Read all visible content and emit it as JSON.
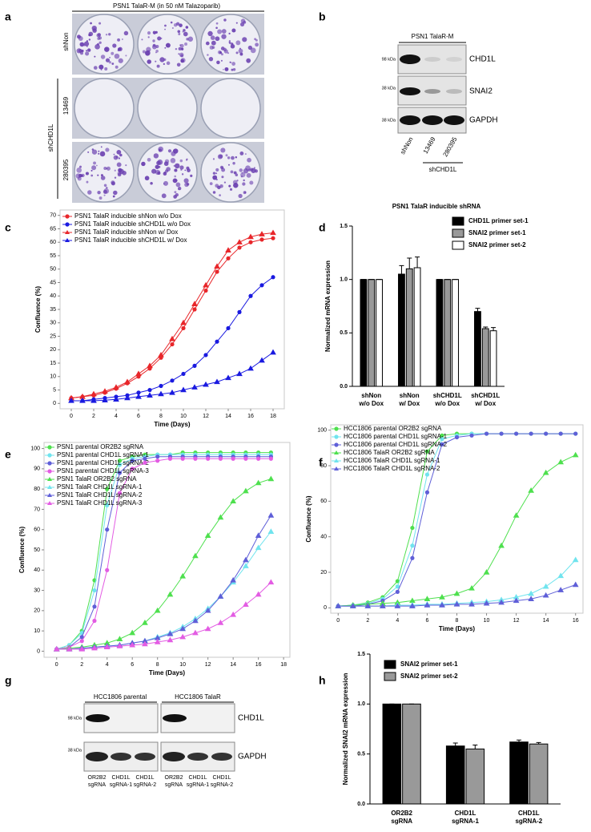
{
  "panel_labels": [
    "a",
    "b",
    "c",
    "d",
    "e",
    "f",
    "g",
    "h"
  ],
  "panel_a": {
    "title": "PSN1 TalaR-M (in 50 nM Talazoparib)",
    "rows": [
      "shNon",
      "13469",
      "280395"
    ],
    "group": "shCHD1L"
  },
  "panel_b": {
    "title": "PSN1 TalaR-M",
    "markers": [
      "98 kDa",
      "38 kDa",
      "38 kDa"
    ],
    "proteins": [
      "CHD1L",
      "SNAI2",
      "GAPDH"
    ],
    "lanes": [
      "shNon",
      "13469",
      "280395"
    ],
    "group": "shCHD1L"
  },
  "panel_g": {
    "groups": [
      "HCC1806 parental",
      "HCC1806 TalaR"
    ],
    "markers": [
      "98 kDa",
      "38 kDa"
    ],
    "proteins": [
      "CHD1L",
      "GAPDH"
    ],
    "lanes": [
      [
        "OR2B2",
        "sgRNA"
      ],
      [
        "CHD1L",
        "sgRNA-1"
      ],
      [
        "CHD1L",
        "sgRNA-2"
      ],
      [
        "OR2B2",
        "sgRNA"
      ],
      [
        "CHD1L",
        "sgRNA-1"
      ],
      [
        "CHD1L",
        "sgRNA-2"
      ]
    ]
  },
  "chart_data": [
    {
      "type": "line",
      "x_label": "Time (Days)",
      "y_label": "Confluence (%)",
      "x": [
        0,
        1,
        2,
        3,
        4,
        5,
        6,
        7,
        8,
        9,
        10,
        11,
        12,
        13,
        14,
        15,
        16,
        17,
        18
      ],
      "xlim": [
        -1,
        19
      ],
      "xticks": [
        0,
        2,
        4,
        6,
        8,
        10,
        12,
        14,
        16,
        18
      ],
      "ylim": [
        -2,
        72
      ],
      "yticks": [
        0,
        5,
        10,
        15,
        20,
        25,
        30,
        35,
        40,
        45,
        50,
        55,
        60,
        65,
        70
      ],
      "series": [
        {
          "name": "PSN1 TalaR inducible shNon w/o Dox",
          "color": "#e8262a",
          "marker": "circle",
          "values": [
            2,
            2.5,
            3,
            4,
            5.5,
            7.5,
            10,
            13,
            17,
            22,
            28,
            35,
            42,
            49,
            54,
            58,
            60,
            61,
            61.5
          ]
        },
        {
          "name": "PSN1 TalaR inducible shCHD1L w/o Dox",
          "color": "#1a1ae0",
          "marker": "circle",
          "values": [
            1,
            1,
            1.5,
            2,
            2.5,
            3,
            4,
            5,
            6.5,
            8.5,
            11,
            14,
            18,
            23,
            28,
            34,
            40,
            44,
            47
          ]
        },
        {
          "name": "PSN1 TalaR inducible shNon w/ Dox",
          "color": "#e8262a",
          "marker": "triangle",
          "values": [
            2,
            2.5,
            3.5,
            4.5,
            6,
            8,
            11,
            14,
            18,
            24,
            30,
            37,
            44,
            51,
            57,
            60,
            62,
            63,
            63.5
          ]
        },
        {
          "name": "PSN1 TalaR inducible shCHD1L w/ Dox",
          "color": "#1a1ae0",
          "marker": "triangle",
          "values": [
            1,
            1,
            1,
            1.2,
            1.5,
            2,
            2.5,
            3,
            3.5,
            4,
            5,
            6,
            7,
            8,
            9.5,
            11,
            13,
            16,
            19
          ]
        }
      ]
    },
    {
      "type": "bar",
      "title": "PSN1 TalaR inducible shRNA",
      "y_label": "Normalized mRNA expression",
      "categories": [
        [
          "shNon",
          "w/o Dox"
        ],
        [
          "shNon",
          "w/ Dox"
        ],
        [
          "shCHD1L",
          "w/o Dox"
        ],
        [
          "shCHD1L",
          "w/ Dox"
        ]
      ],
      "ylim": [
        0,
        1.5
      ],
      "yticks": [
        {
          "value": 0,
          "label": "0.0"
        },
        0.5,
        {
          "value": 1,
          "label": "1.0"
        },
        1.5
      ],
      "series": [
        {
          "name": "CHD1L primer set-1",
          "color": "#000000",
          "values": [
            1,
            1.05,
            1,
            0.7
          ],
          "errors": [
            0,
            0.08,
            0,
            0.03
          ]
        },
        {
          "name": "SNAI2 primer set-1",
          "color": "#999999",
          "values": [
            1,
            1.1,
            1,
            0.54
          ],
          "errors": [
            0,
            0.1,
            0,
            0.015
          ]
        },
        {
          "name": "SNAI2 primer set-2",
          "color": "#ffffff",
          "values": [
            1,
            1.11,
            1,
            0.52
          ],
          "errors": [
            0,
            0.1,
            0,
            0.03
          ]
        }
      ]
    },
    {
      "type": "line",
      "x_label": "Time (Days)",
      "y_label": "Confluence (%)",
      "x": [
        0,
        1,
        2,
        3,
        4,
        5,
        6,
        7,
        8,
        9,
        10,
        11,
        12,
        13,
        14,
        15,
        16,
        17
      ],
      "xlim": [
        -1,
        18.5
      ],
      "xticks": [
        0,
        2,
        4,
        6,
        8,
        10,
        12,
        14,
        16,
        18
      ],
      "ylim": [
        -3,
        103
      ],
      "yticks": [
        0,
        10,
        20,
        30,
        40,
        50,
        60,
        70,
        80,
        90,
        100
      ],
      "series": [
        {
          "name": "PSN1 parental OR2B2 sgRNA",
          "color": "#4ee04e",
          "marker": "circle",
          "values": [
            1,
            3,
            10,
            35,
            80,
            94,
            96,
            97,
            97,
            97,
            98,
            98,
            98,
            98,
            98,
            98,
            98,
            98
          ]
        },
        {
          "name": "PSN1 parental CHD1L sgRNA-1",
          "color": "#70e4ee",
          "marker": "circle",
          "values": [
            1,
            3,
            9,
            30,
            72,
            92,
            95,
            96,
            97,
            97,
            97,
            97,
            97,
            97,
            97,
            97,
            97,
            97
          ]
        },
        {
          "name": "PSN1 parental CHD1L sgRNA-2",
          "color": "#5f5fd8",
          "marker": "circle",
          "values": [
            1,
            2,
            7,
            22,
            60,
            88,
            94,
            95,
            96,
            96,
            96,
            96,
            96,
            96,
            96,
            96,
            96,
            96
          ]
        },
        {
          "name": "PSN1 parental CHD1L sgRNA-3",
          "color": "#e35ce3",
          "marker": "circle",
          "values": [
            1,
            2,
            5,
            15,
            40,
            78,
            90,
            93,
            94,
            95,
            95,
            95,
            95,
            95,
            95,
            95,
            95,
            95
          ]
        },
        {
          "name": "PSN1 TalaR OR2B2 sgRNA",
          "color": "#4ee04e",
          "marker": "triangle",
          "values": [
            1,
            1.5,
            2,
            3,
            4,
            6,
            9,
            14,
            20,
            28,
            37,
            47,
            57,
            66,
            74,
            79,
            83,
            85
          ]
        },
        {
          "name": "PSN1 TalaR CHD1L sgRNA-1",
          "color": "#70e4ee",
          "marker": "triangle",
          "values": [
            1,
            1,
            1.5,
            2,
            2.5,
            3,
            4,
            5,
            7,
            9,
            12,
            16,
            21,
            27,
            34,
            42,
            51,
            59
          ]
        },
        {
          "name": "PSN1 TalaR CHD1L sgRNA-2",
          "color": "#5f5fd8",
          "marker": "triangle",
          "values": [
            1,
            1,
            1.5,
            2,
            2.5,
            3,
            4,
            5,
            6.5,
            8.5,
            11,
            15,
            20,
            27,
            35,
            45,
            57,
            67
          ]
        },
        {
          "name": "PSN1 TalaR CHD1L sgRNA-3",
          "color": "#e35ce3",
          "marker": "triangle",
          "values": [
            1,
            1,
            1,
            1.5,
            2,
            2.5,
            3,
            3.5,
            4.5,
            5.5,
            7,
            9,
            11,
            14,
            18,
            23,
            28,
            34
          ]
        }
      ]
    },
    {
      "type": "line",
      "x_label": "Time (Days)",
      "y_label": "Confluence (%)",
      "x": [
        0,
        1,
        2,
        3,
        4,
        5,
        6,
        7,
        8,
        9,
        10,
        11,
        12,
        13,
        14,
        15,
        16
      ],
      "xlim": [
        -0.5,
        16.5
      ],
      "xticks": [
        0,
        2,
        4,
        6,
        8,
        10,
        12,
        14,
        16
      ],
      "ylim": [
        -3,
        103
      ],
      "yticks": [
        0,
        20,
        40,
        60,
        80,
        100
      ],
      "series": [
        {
          "name": "HCC1806 parental OR2B2 sgRNA",
          "color": "#4ee04e",
          "marker": "circle",
          "values": [
            1,
            1.5,
            3,
            6,
            15,
            45,
            88,
            97,
            98,
            98,
            98,
            98,
            98,
            98,
            98,
            98,
            98
          ]
        },
        {
          "name": "HCC1806 parental CHD1L sgRNA-1",
          "color": "#70e4ee",
          "marker": "circle",
          "values": [
            1,
            1.5,
            2.5,
            5,
            12,
            35,
            75,
            95,
            97,
            98,
            98,
            98,
            98,
            98,
            98,
            98,
            98
          ]
        },
        {
          "name": "HCC1806 parental CHD1L sgRNA-2",
          "color": "#5f5fd8",
          "marker": "circle",
          "values": [
            1,
            1,
            2,
            4,
            9,
            28,
            65,
            92,
            96,
            97,
            98,
            98,
            98,
            98,
            98,
            98,
            98
          ]
        },
        {
          "name": "HCC1806 TalaR OR2B2 sgRNA",
          "color": "#4ee04e",
          "marker": "triangle",
          "values": [
            1,
            1.5,
            2,
            2.5,
            3,
            4,
            5,
            6,
            8,
            11,
            20,
            35,
            52,
            66,
            76,
            82,
            86
          ]
        },
        {
          "name": "HCC1806 TalaR CHD1L sgRNA-1",
          "color": "#70e4ee",
          "marker": "triangle",
          "values": [
            1,
            1,
            1,
            1,
            1.5,
            1.5,
            2,
            2,
            2.5,
            3,
            3.5,
            4.5,
            6,
            8,
            12,
            18,
            27
          ]
        },
        {
          "name": "HCC1806 TalaR CHD1L sgRNA-2",
          "color": "#5f5fd8",
          "marker": "triangle",
          "values": [
            1,
            1,
            1,
            1,
            1,
            1,
            1.5,
            1.5,
            2,
            2,
            2.5,
            3,
            4,
            5,
            7,
            10,
            13
          ]
        }
      ]
    },
    {
      "type": "bar",
      "y_label": "Normalized SNAI2 mRNA expression",
      "categories": [
        [
          "OR2B2",
          "sgRNA"
        ],
        [
          "CHD1L",
          "sgRNA-1"
        ],
        [
          "CHD1L",
          "sgRNA-2"
        ]
      ],
      "ylim": [
        0,
        1.5
      ],
      "yticks": [
        {
          "value": 0,
          "label": "0.0"
        },
        0.5,
        {
          "value": 1,
          "label": "1.0"
        },
        1.5
      ],
      "series": [
        {
          "name": "SNAI2 primer set-1",
          "color": "#000000",
          "values": [
            1,
            0.58,
            0.62
          ],
          "errors": [
            0,
            0.03,
            0.02
          ]
        },
        {
          "name": "SNAI2 primer set-2",
          "color": "#999999",
          "values": [
            1,
            0.55,
            0.6
          ],
          "errors": [
            0,
            0.04,
            0.015
          ]
        }
      ]
    }
  ]
}
